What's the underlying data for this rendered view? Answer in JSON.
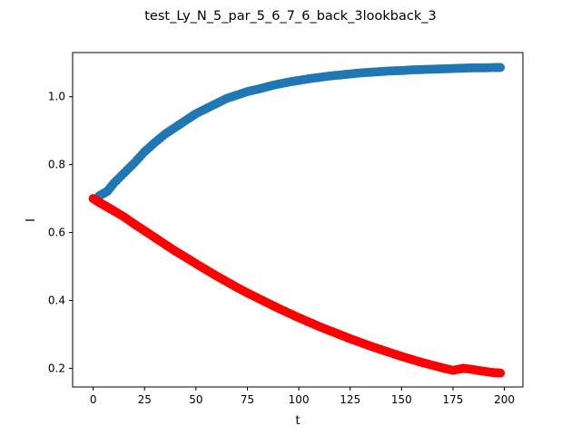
{
  "chart_data": {
    "type": "scatter",
    "title": "test_Ly_N_5_par_5_6_7_6_back_3lookback_3",
    "xlabel": "t",
    "ylabel": "I",
    "xlim": [
      -10,
      209
    ],
    "ylim": [
      0.145,
      1.13
    ],
    "xticks": [
      0,
      25,
      50,
      75,
      100,
      125,
      150,
      175,
      200
    ],
    "yticks": [
      0.2,
      0.4,
      0.6,
      0.8,
      1.0
    ],
    "xtick_labels": [
      "0",
      "25",
      "50",
      "75",
      "100",
      "125",
      "150",
      "175",
      "200"
    ],
    "ytick_labels": [
      "0.2",
      "0.4",
      "0.6",
      "0.8",
      "1.0"
    ],
    "grid": false,
    "series": [
      {
        "color": "#1f77b4",
        "x": [
          3,
          5,
          7,
          10,
          15,
          20,
          25,
          30,
          35,
          40,
          45,
          50,
          55,
          60,
          65,
          70,
          75,
          80,
          85,
          90,
          95,
          100,
          105,
          110,
          115,
          120,
          125,
          130,
          135,
          140,
          145,
          150,
          155,
          160,
          165,
          170,
          175,
          180,
          185,
          190,
          195,
          198
        ],
        "y": [
          0.708,
          0.715,
          0.722,
          0.745,
          0.775,
          0.805,
          0.838,
          0.865,
          0.89,
          0.91,
          0.93,
          0.95,
          0.965,
          0.98,
          0.995,
          1.005,
          1.015,
          1.022,
          1.03,
          1.037,
          1.043,
          1.048,
          1.053,
          1.057,
          1.061,
          1.064,
          1.067,
          1.07,
          1.072,
          1.074,
          1.076,
          1.077,
          1.079,
          1.08,
          1.081,
          1.082,
          1.083,
          1.084,
          1.085,
          1.085,
          1.086,
          1.086
        ]
      },
      {
        "color": "#ff0000",
        "x": [
          0,
          2,
          4,
          6,
          8,
          10,
          15,
          20,
          25,
          30,
          35,
          40,
          45,
          50,
          55,
          60,
          65,
          70,
          75,
          80,
          85,
          90,
          95,
          100,
          105,
          110,
          115,
          120,
          125,
          130,
          135,
          140,
          145,
          150,
          155,
          160,
          165,
          170,
          175,
          180,
          185,
          190,
          195,
          198
        ],
        "y": [
          0.7,
          0.692,
          0.685,
          0.678,
          0.671,
          0.664,
          0.646,
          0.625,
          0.605,
          0.585,
          0.565,
          0.545,
          0.527,
          0.508,
          0.49,
          0.472,
          0.455,
          0.438,
          0.422,
          0.407,
          0.392,
          0.377,
          0.363,
          0.349,
          0.336,
          0.323,
          0.311,
          0.299,
          0.287,
          0.276,
          0.265,
          0.255,
          0.245,
          0.235,
          0.226,
          0.217,
          0.209,
          0.201,
          0.194,
          0.2,
          0.196,
          0.191,
          0.187,
          0.186
        ]
      }
    ]
  }
}
